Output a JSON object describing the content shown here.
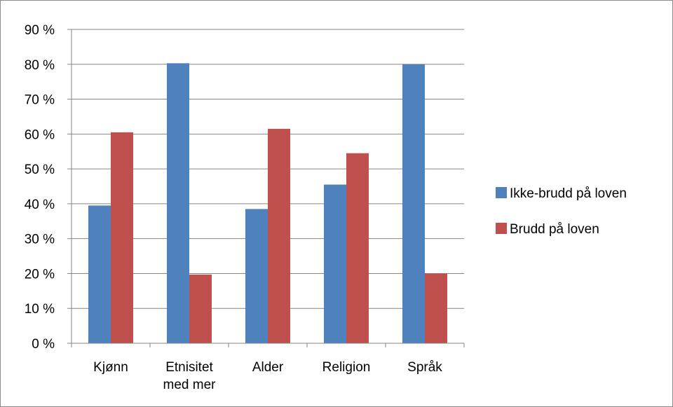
{
  "chart_data": {
    "type": "bar",
    "categories": [
      [
        "Kjønn"
      ],
      [
        "Etnisitet",
        "med mer"
      ],
      [
        "Alder"
      ],
      [
        "Religion"
      ],
      [
        "Språk"
      ]
    ],
    "series": [
      {
        "name": "Ikke-brudd på loven",
        "color": "#4f81bd",
        "values": [
          39.5,
          80.3,
          38.5,
          45.5,
          80.0
        ]
      },
      {
        "name": "Brudd på loven",
        "color": "#c0504d",
        "values": [
          60.5,
          19.7,
          61.5,
          54.5,
          20.0
        ]
      }
    ],
    "yticks": [
      "0 %",
      "10 %",
      "20 %",
      "30 %",
      "40 %",
      "50 %",
      "60 %",
      "70 %",
      "80 %",
      "90 %"
    ],
    "ylim": [
      0,
      90
    ],
    "unit": "%",
    "grid": true,
    "legend_position": "right",
    "title": "",
    "xlabel": "",
    "ylabel": ""
  }
}
